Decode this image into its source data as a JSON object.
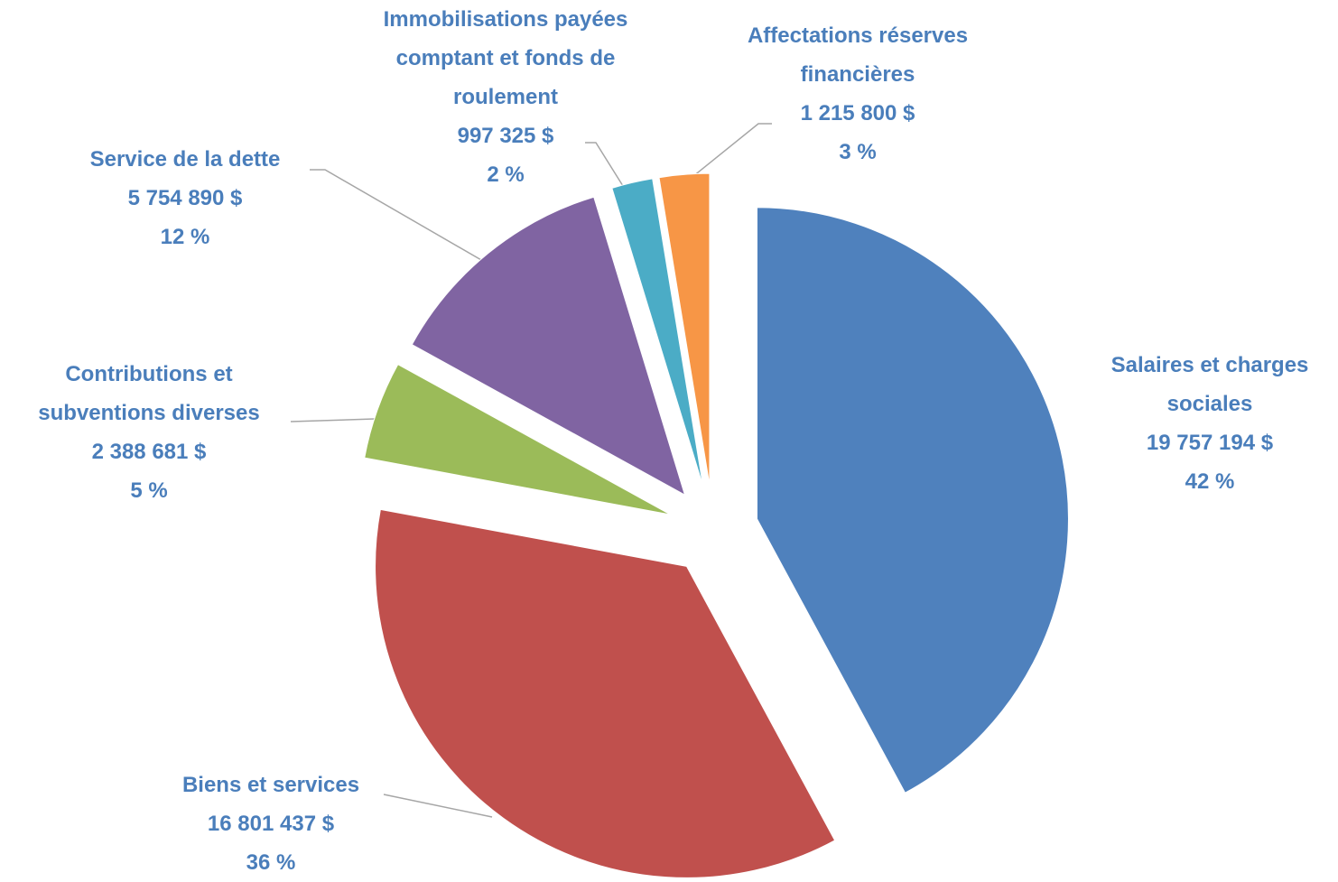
{
  "chart_data": {
    "type": "pie",
    "categories": [
      "Salaires et charges sociales",
      "Biens et services",
      "Contributions et subventions diverses",
      "Service de la dette",
      "Immobilisations payées comptant et fonds de roulement",
      "Affectations réserves financières"
    ],
    "values": [
      19757194,
      16801437,
      2388681,
      5754890,
      997325,
      1215800
    ],
    "value_labels": [
      "19 757 194  $",
      "16 801 437  $",
      "2 388 681  $",
      "5 754 890  $",
      "997 325  $",
      "1 215 800  $"
    ],
    "percents": [
      42,
      36,
      5,
      12,
      2,
      3
    ],
    "percent_labels": [
      "42 %",
      "36 %",
      "5 %",
      "12 %",
      "2 %",
      "3 %"
    ],
    "colors": [
      "#4f81bd",
      "#c0504d",
      "#9bbb59",
      "#8064a2",
      "#4bacc6",
      "#f79646"
    ]
  }
}
